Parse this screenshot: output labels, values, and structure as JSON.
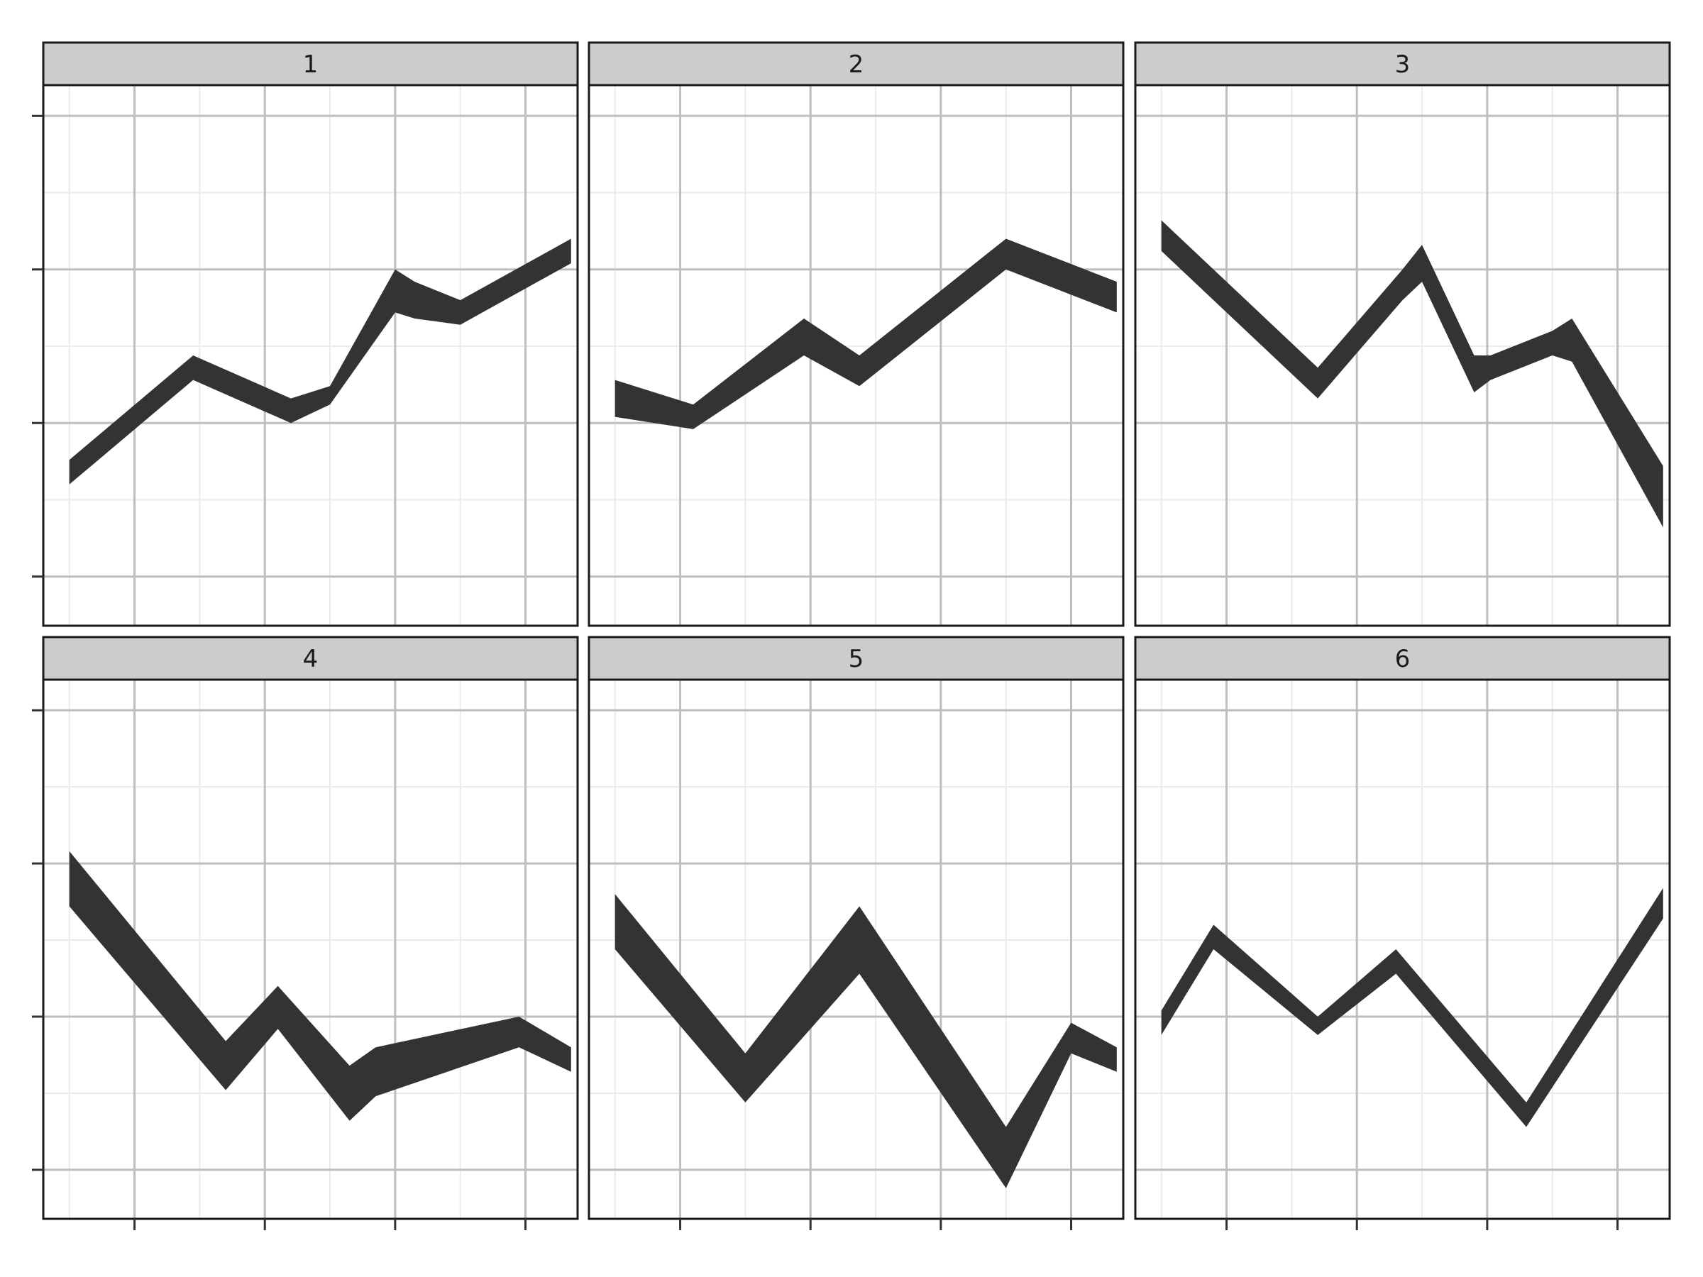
{
  "chart_data": {
    "type": "area",
    "layout": "facet-grid-2x3",
    "grid": true,
    "axis_text": false,
    "x": [
      1,
      2,
      3,
      4,
      5,
      6,
      7,
      8,
      9
    ],
    "xlim": [
      0.6,
      8.8
    ],
    "ylim": [
      0.17,
      1.05
    ],
    "colors": {
      "ribbon": "#333333",
      "strip_fill": "#cccccc",
      "panel_border": "#1a1a1a",
      "grid_major": "#bebebe",
      "grid_minor": "#ebebeb"
    },
    "facets": [
      {
        "label": "1",
        "x": [
          1,
          2.9,
          4.4,
          5.0,
          6.0,
          6.3,
          7.0,
          8.7
        ],
        "ymin": [
          0.4,
          0.57,
          0.5,
          0.53,
          0.68,
          0.67,
          0.66,
          0.76
        ],
        "ymax": [
          0.44,
          0.61,
          0.54,
          0.56,
          0.75,
          0.73,
          0.7,
          0.8
        ]
      },
      {
        "label": "2",
        "x": [
          1,
          2.2,
          3.9,
          4.75,
          7.0,
          8.7
        ],
        "ymin": [
          0.51,
          0.49,
          0.61,
          0.56,
          0.75,
          0.68
        ],
        "ymax": [
          0.57,
          0.53,
          0.67,
          0.61,
          0.8,
          0.73
        ]
      },
      {
        "label": "3",
        "x": [
          1,
          3.4,
          4.7,
          5.0,
          5.8,
          6.05,
          7.0,
          7.3,
          8.7
        ],
        "ymin": [
          0.78,
          0.54,
          0.7,
          0.73,
          0.55,
          0.57,
          0.61,
          0.6,
          0.33
        ],
        "ymax": [
          0.83,
          0.59,
          0.75,
          0.79,
          0.61,
          0.61,
          0.65,
          0.67,
          0.43
        ]
      },
      {
        "label": "4",
        "x": [
          1,
          3.4,
          4.2,
          5.3,
          5.7,
          7.9,
          8.7
        ],
        "ymin": [
          0.68,
          0.38,
          0.48,
          0.33,
          0.37,
          0.45,
          0.41
        ],
        "ymax": [
          0.77,
          0.46,
          0.55,
          0.42,
          0.45,
          0.5,
          0.45
        ]
      },
      {
        "label": "5",
        "x": [
          1,
          3.0,
          4.75,
          7.0,
          8.0,
          8.7
        ],
        "ymin": [
          0.61,
          0.36,
          0.57,
          0.22,
          0.44,
          0.41
        ],
        "ymax": [
          0.7,
          0.44,
          0.68,
          0.32,
          0.49,
          0.45
        ]
      },
      {
        "label": "6",
        "x": [
          1,
          1.8,
          3.4,
          4.6,
          6.6,
          8.7
        ],
        "ymin": [
          0.47,
          0.61,
          0.47,
          0.57,
          0.32,
          0.66
        ],
        "ymax": [
          0.51,
          0.65,
          0.5,
          0.61,
          0.36,
          0.71
        ]
      }
    ]
  }
}
